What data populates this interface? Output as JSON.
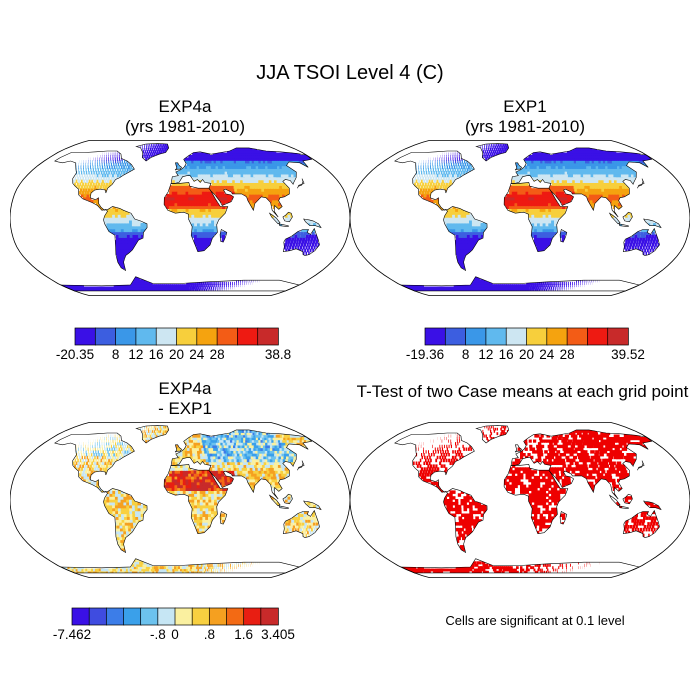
{
  "figure": {
    "title": "JJA TSOI Level 4 (C)",
    "note": "Cells are significant at 0.1 level"
  },
  "colors": {
    "abs_scale": [
      "#3a10e6",
      "#3c5ee0",
      "#3a97e8",
      "#60b9ee",
      "#cde6f2",
      "#f7cf3c",
      "#f5a30f",
      "#f35c16",
      "#ee1a12",
      "#c82a2a"
    ],
    "diff_scale": [
      "#3a10e6",
      "#3f4ce0",
      "#3c7de8",
      "#3aa0ea",
      "#6cc2ee",
      "#c6e6f4",
      "#faf0a0",
      "#f8d040",
      "#f5a020",
      "#f36a14",
      "#e81e12",
      "#c82a2a"
    ],
    "significant": "#ee0000"
  },
  "chart_data": [
    {
      "type": "heatmap",
      "title": "EXP4a",
      "subtitle": "(yrs 1981-2010)",
      "colorbar": {
        "labels": [
          "-20.35",
          "8",
          "12",
          "16",
          "20",
          "24",
          "28",
          "38.8"
        ],
        "min": -20.35,
        "max": 38.8,
        "bounds": [
          4,
          8,
          12,
          16,
          20,
          24,
          28,
          32,
          36
        ]
      }
    },
    {
      "type": "heatmap",
      "title": "EXP1",
      "subtitle": "(yrs 1981-2010)",
      "colorbar": {
        "labels": [
          "-19.36",
          "8",
          "12",
          "16",
          "20",
          "24",
          "28",
          "39.52"
        ],
        "min": -19.36,
        "max": 39.52,
        "bounds": [
          4,
          8,
          12,
          16,
          20,
          24,
          28,
          32,
          36
        ]
      }
    },
    {
      "type": "heatmap",
      "title": "EXP4a",
      "subtitle": "- EXP1",
      "colorbar": {
        "labels": [
          "-7.462",
          "-.8",
          "0",
          ".8",
          "1.6",
          "3.405"
        ],
        "min": -7.462,
        "max": 3.405,
        "bounds": [
          -2.4,
          -2.0,
          -1.6,
          -1.2,
          -0.8,
          -0.4,
          0,
          0.4,
          0.8,
          1.2,
          1.6
        ]
      }
    },
    {
      "type": "heatmap",
      "title": "T-Test of two Case means at each grid point",
      "legend": "Cells are significant at 0.1 level"
    }
  ]
}
